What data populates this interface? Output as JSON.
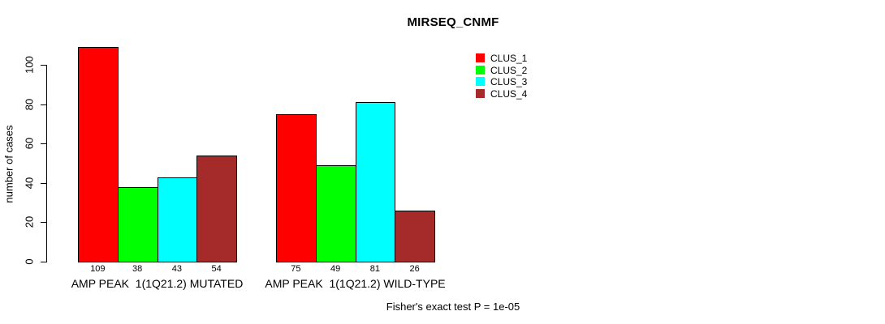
{
  "title": "MIRSEQ_CNMF",
  "y_axis": {
    "label": "number of cases",
    "ticks": [
      0,
      20,
      40,
      60,
      80,
      100
    ]
  },
  "footer": "Fisher's exact test P = 1e-05",
  "legend": {
    "items": [
      {
        "label": "CLUS_1",
        "color": "#FF0000"
      },
      {
        "label": "CLUS_2",
        "color": "#00FF00"
      },
      {
        "label": "CLUS_3",
        "color": "#00FFFF"
      },
      {
        "label": "CLUS_4",
        "color": "#A52A2A"
      }
    ]
  },
  "chart_data": {
    "type": "bar",
    "title": "MIRSEQ_CNMF",
    "xlabel": "",
    "ylabel": "number of cases",
    "ylim": [
      0,
      109
    ],
    "yticks": [
      0,
      20,
      40,
      60,
      80,
      100
    ],
    "grid": false,
    "legend_position": "top-right",
    "categories": [
      "AMP PEAK  1(1Q21.2) MUTATED",
      "AMP PEAK  1(1Q21.2) WILD-TYPE"
    ],
    "series": [
      {
        "name": "CLUS_1",
        "color": "#FF0000",
        "values": [
          109,
          75
        ]
      },
      {
        "name": "CLUS_2",
        "color": "#00FF00",
        "values": [
          38,
          49
        ]
      },
      {
        "name": "CLUS_3",
        "color": "#00FFFF",
        "values": [
          43,
          81
        ]
      },
      {
        "name": "CLUS_4",
        "color": "#A52A2A",
        "values": [
          54,
          26
        ]
      }
    ],
    "bar_value_labels": [
      [
        109,
        38,
        43,
        54
      ],
      [
        75,
        49,
        81,
        26
      ]
    ],
    "annotation": "Fisher's exact test P = 1e-05"
  }
}
